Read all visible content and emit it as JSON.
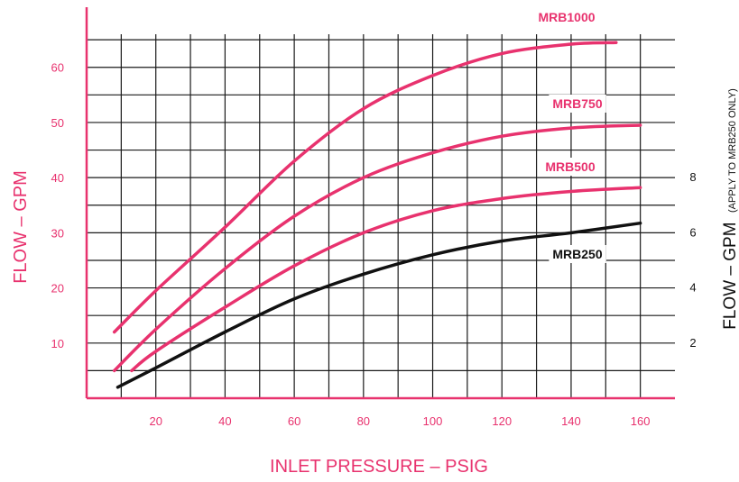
{
  "colors": {
    "accent": "#e8326e",
    "black": "#111111",
    "grid": "#1a1a1a"
  },
  "chart_data": {
    "type": "line",
    "title": "",
    "xlabel": "INLET PRESSURE – PSIG",
    "ylabel": "FLOW – GPM",
    "y2label_main": "FLOW – GPM",
    "y2label_note": "(APPLY TO MRB250 ONLY)",
    "xlim": [
      0,
      170
    ],
    "ylim": [
      0,
      66
    ],
    "y2lim": [
      0,
      13.2
    ],
    "x_ticks": [
      20,
      40,
      60,
      80,
      100,
      120,
      140,
      160
    ],
    "y_ticks": [
      10,
      20,
      30,
      40,
      50,
      60
    ],
    "y2_ticks": [
      2,
      4,
      6,
      8
    ],
    "grid": true,
    "series": [
      {
        "name": "MRB1000",
        "axis": "left",
        "color": "#e8326e",
        "x": [
          8,
          20,
          40,
          60,
          80,
          100,
          120,
          140,
          153
        ],
        "y": [
          12,
          19.5,
          31,
          43,
          52.5,
          58.5,
          62.5,
          64.2,
          64.5
        ]
      },
      {
        "name": "MRB750",
        "axis": "left",
        "color": "#e8326e",
        "x": [
          8,
          20,
          40,
          60,
          80,
          100,
          120,
          140,
          160
        ],
        "y": [
          5,
          12.5,
          23.5,
          33,
          40,
          44.5,
          47.5,
          49,
          49.5
        ]
      },
      {
        "name": "MRB500",
        "axis": "left",
        "color": "#e8326e",
        "x": [
          13,
          20,
          40,
          60,
          80,
          100,
          120,
          140,
          160
        ],
        "y": [
          5,
          8.5,
          16.5,
          24,
          30,
          34,
          36.2,
          37.5,
          38.2
        ]
      },
      {
        "name": "MRB250",
        "axis": "right",
        "color": "#111111",
        "x": [
          9,
          20,
          40,
          60,
          80,
          100,
          120,
          140,
          160
        ],
        "y": [
          0.4,
          1.1,
          2.4,
          3.6,
          4.5,
          5.2,
          5.7,
          6.0,
          6.35
        ]
      }
    ]
  }
}
